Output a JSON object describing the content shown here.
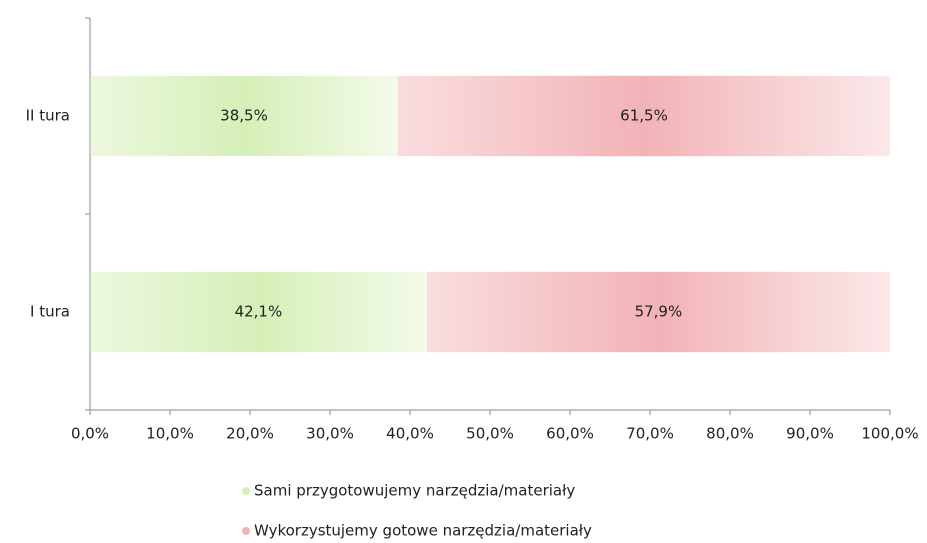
{
  "chart_data": {
    "type": "stacked_barh",
    "categories": [
      "I tura",
      "II tura"
    ],
    "series": [
      {
        "name": "Sami przygotowujemy narzędzia/materiały",
        "color": "#d6efb8",
        "values": [
          42.1,
          38.5
        ],
        "value_labels": [
          "42,1%",
          "38,5%"
        ]
      },
      {
        "name": "Wykorzystujemy gotowe narzędzia/materiały",
        "color": "#f2b3b7",
        "values": [
          57.9,
          61.5
        ],
        "value_labels": [
          "57,9%",
          "61,5%"
        ]
      }
    ],
    "xlim": [
      0,
      100
    ],
    "xticks": [
      {
        "value": 0,
        "label": "0,0%"
      },
      {
        "value": 10,
        "label": "10,0%"
      },
      {
        "value": 20,
        "label": "20,0%"
      },
      {
        "value": 30,
        "label": "30,0%"
      },
      {
        "value": 40,
        "label": "40,0%"
      },
      {
        "value": 50,
        "label": "50,0%"
      },
      {
        "value": 60,
        "label": "60,0%"
      },
      {
        "value": 70,
        "label": "70,0%"
      },
      {
        "value": 80,
        "label": "80,0%"
      },
      {
        "value": 90,
        "label": "90,0%"
      },
      {
        "value": 100,
        "label": "100,0%"
      }
    ]
  }
}
